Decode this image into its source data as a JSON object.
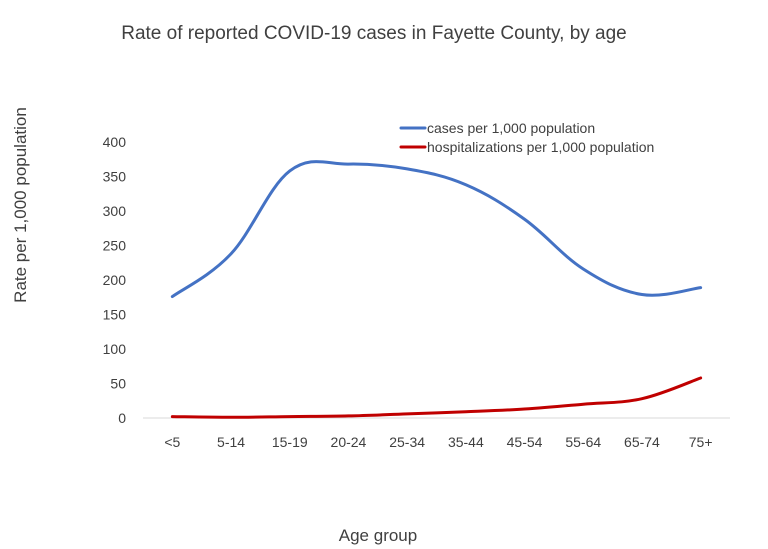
{
  "chart_data": {
    "type": "line",
    "title": "Rate of reported COVID-19 cases in Fayette County, by age",
    "xlabel": "Age group",
    "ylabel": "Rate per 1,000 population",
    "categories": [
      "<5",
      "5-14",
      "15-19",
      "20-24",
      "25-34",
      "35-44",
      "45-54",
      "55-64",
      "65-74",
      "75+"
    ],
    "y_ticks": [
      "0",
      "50",
      "100",
      "150",
      "200",
      "250",
      "300",
      "350",
      "400"
    ],
    "ylim": [
      0,
      400
    ],
    "grid": false,
    "legend_position": "top-right",
    "series": [
      {
        "name": "cases per 1,000 population",
        "color": "#4472c4",
        "values": [
          176,
          238,
          358,
          368,
          361,
          338,
          288,
          216,
          179,
          189
        ]
      },
      {
        "name": "hospitalizations per 1,000 population",
        "color": "#c00000",
        "values": [
          2,
          1,
          2,
          3,
          6,
          9,
          13,
          20,
          28,
          58
        ]
      }
    ]
  }
}
